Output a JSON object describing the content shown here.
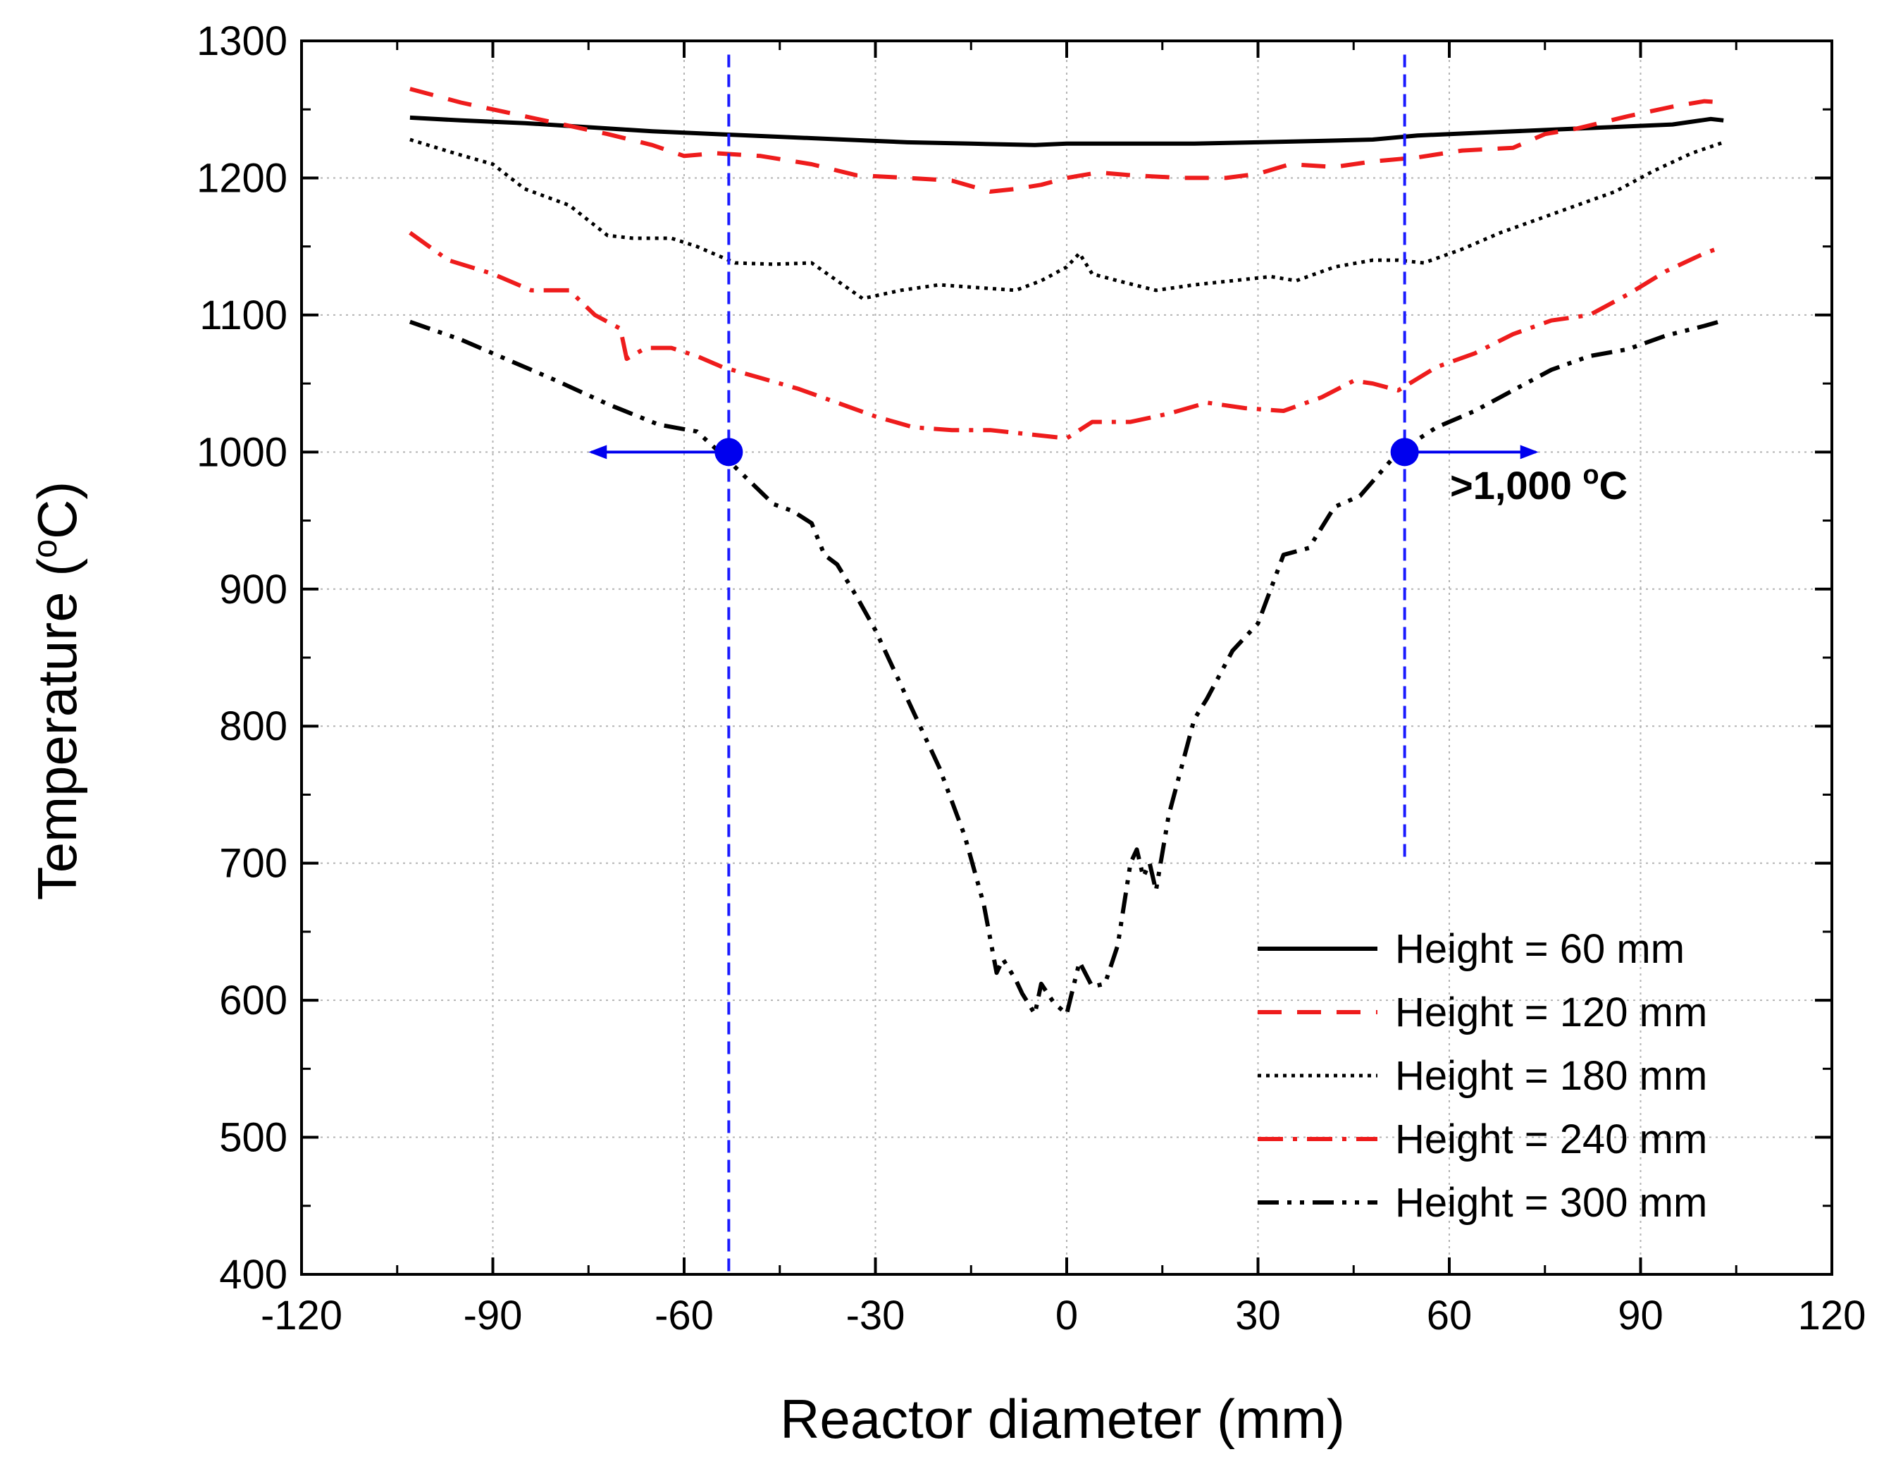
{
  "chart_data": {
    "type": "line",
    "title": "",
    "xlabel": "Reactor diameter (mm)",
    "ylabel": "Temperature (°C)",
    "ylabel_parts": {
      "pre": "Temperature (",
      "sup": "o",
      "post": "C)"
    },
    "xlim": [
      -120,
      120
    ],
    "ylim": [
      400,
      1300
    ],
    "xticks": [
      -120,
      -90,
      -60,
      -30,
      0,
      30,
      60,
      90,
      120
    ],
    "yticks": [
      400,
      500,
      600,
      700,
      800,
      900,
      1000,
      1100,
      1200,
      1300
    ],
    "grid": true,
    "legend_position": "bottom-right",
    "series": [
      {
        "name": "Height = 60 mm",
        "color": "#000000",
        "style": "solid",
        "x": [
          -103,
          -95,
          -85,
          -75,
          -65,
          -55,
          -45,
          -35,
          -25,
          -15,
          -5,
          0,
          10,
          20,
          30,
          40,
          48,
          55,
          65,
          75,
          85,
          95,
          101,
          103
        ],
        "y": [
          1244,
          1242,
          1240,
          1237,
          1234,
          1232,
          1230,
          1228,
          1226,
          1225,
          1224,
          1225,
          1225,
          1225,
          1226,
          1227,
          1228,
          1231,
          1233,
          1235,
          1237,
          1239,
          1243,
          1242
        ]
      },
      {
        "name": "Height = 120 mm",
        "color": "#ee1c1c",
        "style": "dashed",
        "x": [
          -103,
          -95,
          -88,
          -80,
          -72,
          -65,
          -60,
          -55,
          -48,
          -40,
          -33,
          -25,
          -18,
          -12,
          -8,
          -4,
          0,
          5,
          10,
          18,
          25,
          30,
          35,
          42,
          48,
          55,
          62,
          70,
          75,
          80,
          88,
          95,
          100,
          103
        ],
        "y": [
          1265,
          1255,
          1248,
          1240,
          1232,
          1224,
          1216,
          1218,
          1216,
          1210,
          1202,
          1200,
          1198,
          1190,
          1192,
          1195,
          1200,
          1204,
          1202,
          1200,
          1200,
          1203,
          1210,
          1208,
          1212,
          1215,
          1220,
          1222,
          1232,
          1236,
          1245,
          1252,
          1256,
          1255
        ]
      },
      {
        "name": "Height = 180 mm",
        "color": "#000000",
        "style": "dotted",
        "x": [
          -103,
          -96,
          -90,
          -85,
          -78,
          -72,
          -68,
          -62,
          -58,
          -52,
          -46,
          -40,
          -36,
          -32,
          -26,
          -20,
          -14,
          -8,
          -4,
          0,
          2,
          4,
          8,
          14,
          20,
          26,
          32,
          36,
          42,
          48,
          52,
          56,
          62,
          68,
          74,
          80,
          86,
          92,
          98,
          103
        ],
        "y": [
          1228,
          1218,
          1210,
          1192,
          1180,
          1158,
          1156,
          1156,
          1150,
          1138,
          1137,
          1138,
          1125,
          1112,
          1118,
          1122,
          1120,
          1118,
          1125,
          1135,
          1145,
          1130,
          1125,
          1118,
          1122,
          1125,
          1128,
          1125,
          1135,
          1140,
          1140,
          1138,
          1148,
          1160,
          1170,
          1180,
          1190,
          1205,
          1218,
          1226
        ]
      },
      {
        "name": "Height = 240 mm",
        "color": "#ee1c1c",
        "style": "dashdot",
        "x": [
          -103,
          -97,
          -90,
          -84,
          -78,
          -74,
          -70,
          -69,
          -66,
          -62,
          -58,
          -54,
          -48,
          -42,
          -36,
          -30,
          -24,
          -18,
          -12,
          -8,
          -4,
          0,
          4,
          10,
          16,
          22,
          28,
          34,
          40,
          45,
          48,
          52,
          58,
          64,
          70,
          76,
          82,
          88,
          94,
          100,
          103
        ],
        "y": [
          1160,
          1140,
          1130,
          1118,
          1118,
          1100,
          1090,
          1068,
          1076,
          1076,
          1070,
          1062,
          1054,
          1046,
          1036,
          1026,
          1018,
          1016,
          1016,
          1014,
          1012,
          1010,
          1022,
          1022,
          1028,
          1036,
          1032,
          1030,
          1040,
          1052,
          1050,
          1045,
          1062,
          1072,
          1086,
          1096,
          1100,
          1115,
          1132,
          1145,
          1150
        ]
      },
      {
        "name": "Height = 300 mm",
        "color": "#000000",
        "style": "dashdotdot",
        "x": [
          -103,
          -95,
          -88,
          -80,
          -72,
          -64,
          -58,
          -54,
          -50,
          -46,
          -43,
          -40,
          -38,
          -36,
          -33,
          -30,
          -27,
          -24,
          -20,
          -16,
          -13,
          -11,
          -10,
          -8,
          -7,
          -5,
          -4,
          -2,
          0,
          2,
          4,
          6,
          8,
          10,
          11,
          12,
          13,
          14,
          16,
          18,
          20,
          22,
          26,
          30,
          34,
          38,
          42,
          46,
          52,
          58,
          64,
          70,
          76,
          82,
          88,
          94,
          100,
          103
        ],
        "y": [
          1095,
          1082,
          1068,
          1052,
          1035,
          1020,
          1015,
          998,
          980,
          962,
          957,
          948,
          925,
          918,
          895,
          870,
          840,
          810,
          770,
          720,
          670,
          620,
          630,
          615,
          605,
          590,
          612,
          598,
          590,
          628,
          610,
          612,
          640,
          700,
          710,
          690,
          700,
          680,
          735,
          770,
          805,
          820,
          855,
          875,
          925,
          930,
          960,
          968,
          1000,
          1018,
          1030,
          1045,
          1060,
          1070,
          1075,
          1085,
          1092,
          1096
        ]
      }
    ],
    "annotations": {
      "threshold_text": ">1,000 °C",
      "threshold_parts": {
        "pre": ">1,000 ",
        "sup": "o",
        "post": "C"
      },
      "threshold_value": 1000,
      "markers": [
        {
          "x": -53,
          "y": 1000,
          "arrow_to_x": -75
        },
        {
          "x": 53,
          "y": 1000,
          "arrow_to_x": 74
        }
      ],
      "vertical_lines": [
        {
          "x": -53,
          "y_from": 400,
          "y_to": 1290
        },
        {
          "x": 53,
          "y_from": 700,
          "y_to": 1290
        }
      ],
      "marker_color": "#0000ee",
      "vline_color": "#1a1aff"
    }
  }
}
